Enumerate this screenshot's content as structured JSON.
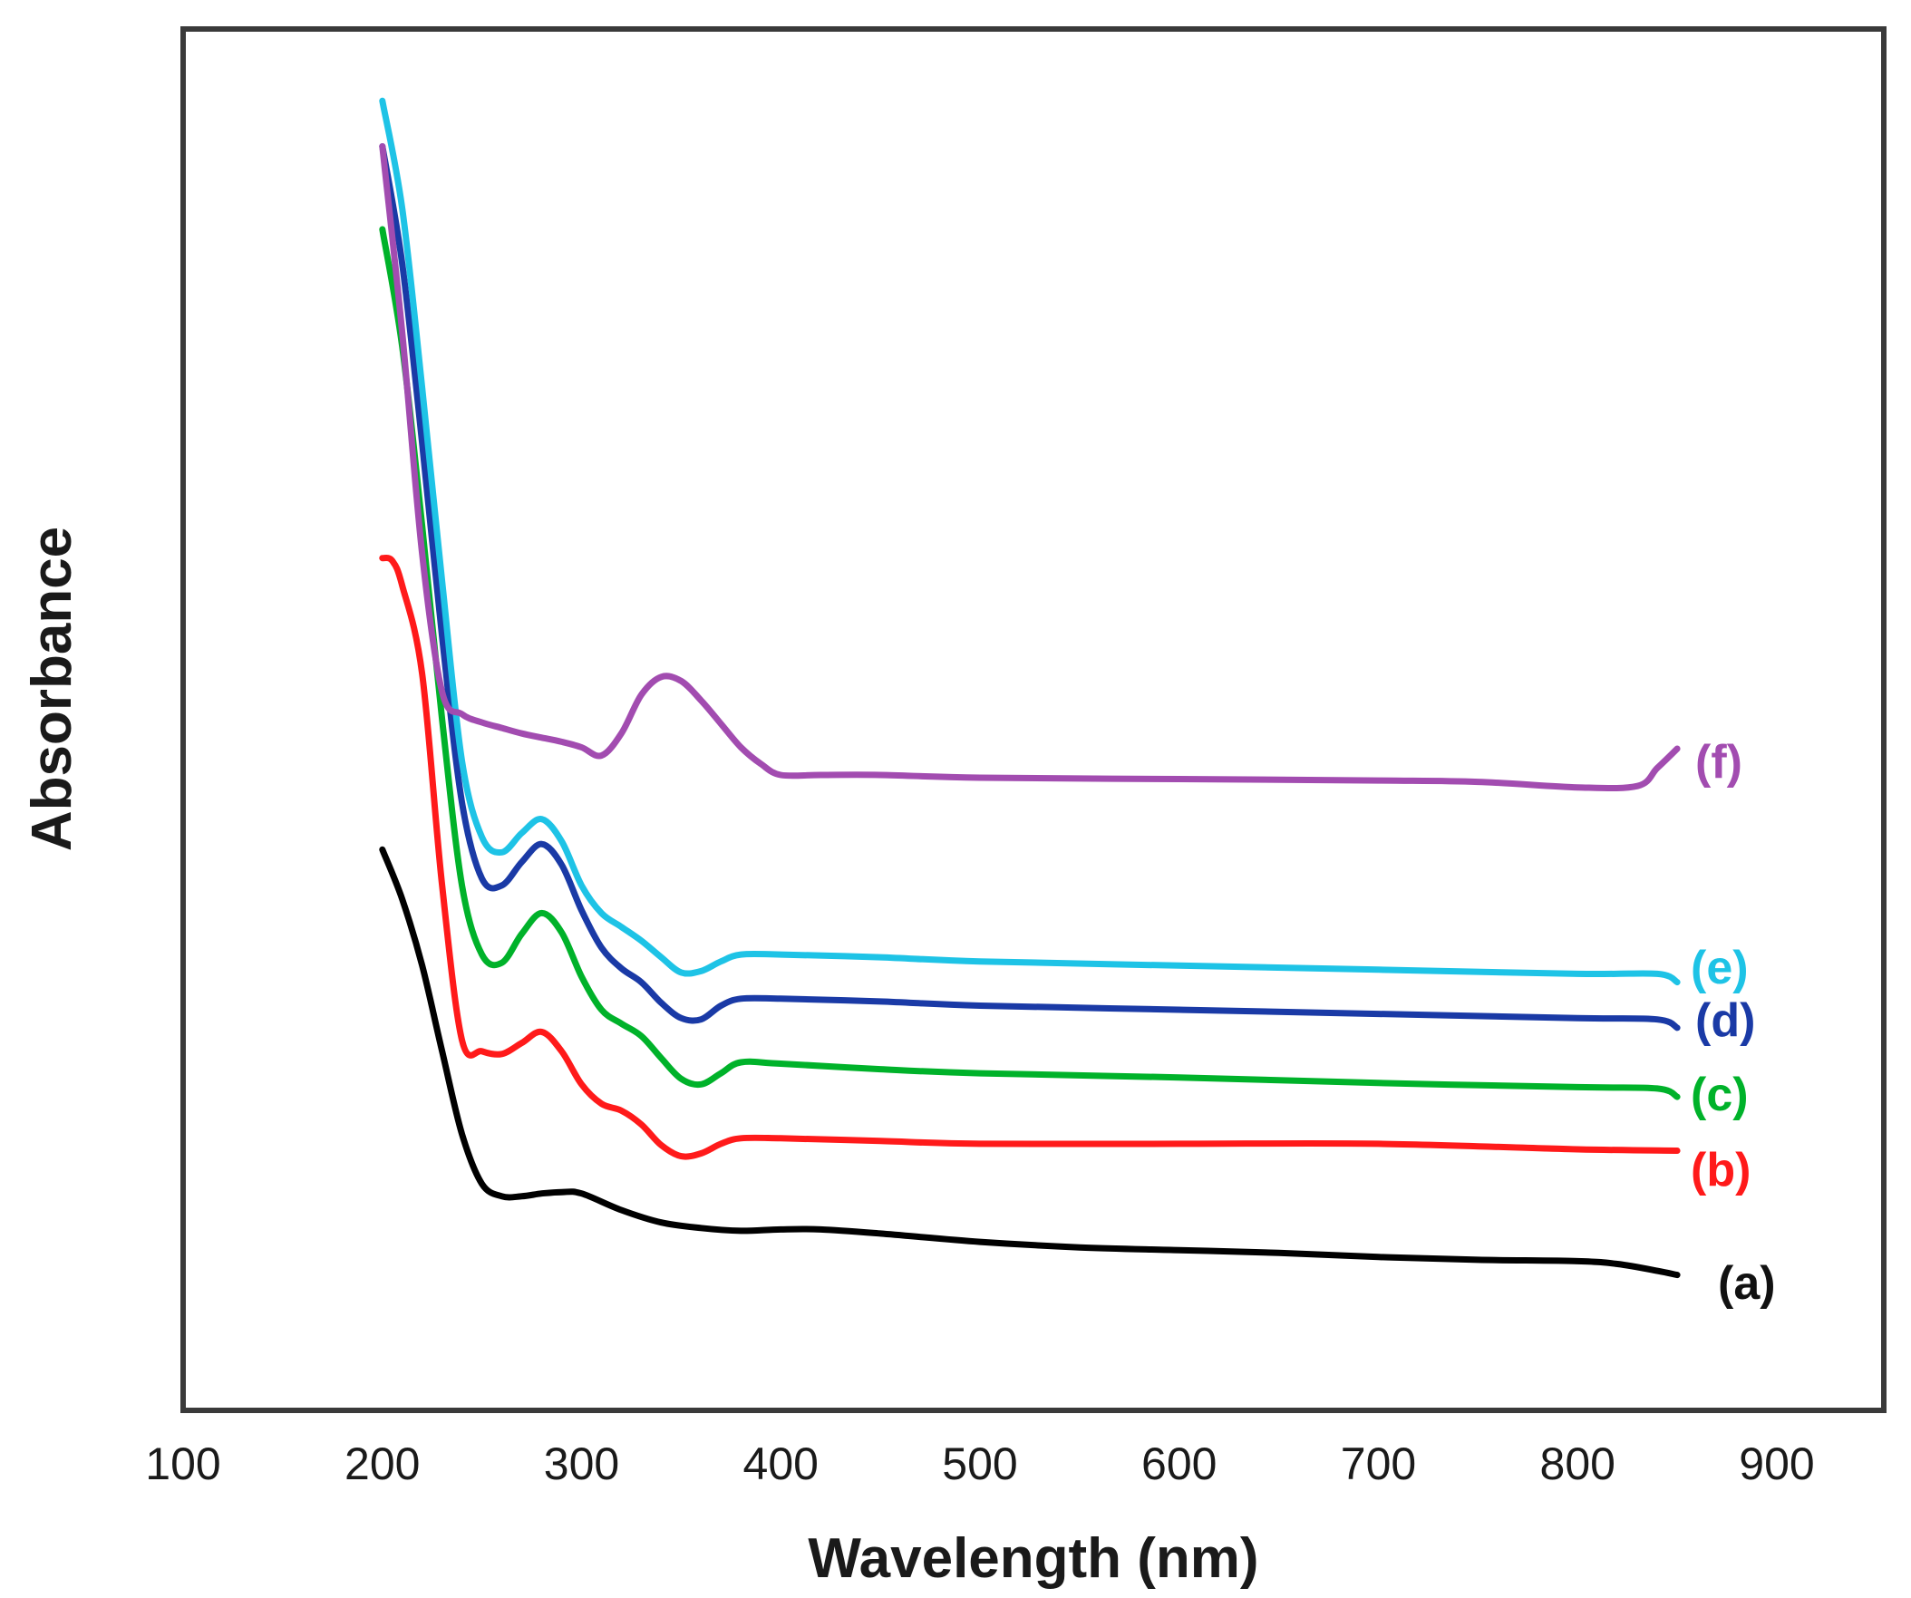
{
  "chart_data": {
    "type": "line",
    "title": "",
    "xlabel": "Wavelength (nm)",
    "ylabel": "Absorbance",
    "xlim": [
      100,
      950
    ],
    "ylim": [
      0,
      1
    ],
    "xticks": [
      100,
      200,
      300,
      400,
      500,
      600,
      700,
      800,
      900
    ],
    "xtick_labels": [
      "100",
      "200",
      "300",
      "400",
      "500",
      "600",
      "700",
      "800",
      "900"
    ],
    "y_ticks_shown": false,
    "grid": false,
    "series": [
      {
        "name": "(a)",
        "label": "(a)",
        "color": "#000000",
        "label_color": "#111111",
        "x": [
          200,
          210,
          220,
          230,
          240,
          250,
          260,
          270,
          280,
          290,
          300,
          320,
          340,
          360,
          380,
          400,
          420,
          450,
          500,
          550,
          600,
          650,
          700,
          750,
          800,
          820,
          840,
          850
        ],
        "y": [
          0.406,
          0.37,
          0.322,
          0.26,
          0.2,
          0.164,
          0.155,
          0.155,
          0.157,
          0.158,
          0.157,
          0.145,
          0.136,
          0.132,
          0.13,
          0.131,
          0.131,
          0.128,
          0.122,
          0.118,
          0.116,
          0.114,
          0.111,
          0.109,
          0.108,
          0.106,
          0.101,
          0.098
        ]
      },
      {
        "name": "(b)",
        "label": "(b)",
        "color": "#ff1a1a",
        "label_color": "#ff1a1a",
        "x": [
          200,
          205,
          210,
          220,
          230,
          240,
          250,
          260,
          270,
          280,
          290,
          300,
          310,
          320,
          330,
          340,
          350,
          360,
          370,
          380,
          400,
          450,
          500,
          600,
          700,
          800,
          850
        ],
        "y": [
          0.617,
          0.615,
          0.597,
          0.533,
          0.38,
          0.268,
          0.26,
          0.258,
          0.266,
          0.274,
          0.26,
          0.236,
          0.222,
          0.217,
          0.207,
          0.192,
          0.184,
          0.186,
          0.193,
          0.197,
          0.197,
          0.195,
          0.193,
          0.193,
          0.193,
          0.189,
          0.188
        ]
      },
      {
        "name": "(c)",
        "label": "(c)",
        "color": "#00b22a",
        "label_color": "#00b22a",
        "x": [
          200,
          210,
          220,
          230,
          240,
          250,
          260,
          270,
          280,
          290,
          300,
          310,
          320,
          330,
          340,
          350,
          360,
          370,
          380,
          400,
          450,
          500,
          600,
          700,
          800,
          840,
          850
        ],
        "y": [
          0.855,
          0.77,
          0.64,
          0.5,
          0.38,
          0.33,
          0.324,
          0.345,
          0.36,
          0.346,
          0.314,
          0.29,
          0.28,
          0.271,
          0.255,
          0.24,
          0.236,
          0.244,
          0.252,
          0.251,
          0.247,
          0.244,
          0.241,
          0.237,
          0.234,
          0.233,
          0.227
        ]
      },
      {
        "name": "(d)",
        "label": "(d)",
        "color": "#1a3aa6",
        "label_color": "#1a3aa6",
        "x": [
          200,
          210,
          220,
          230,
          240,
          250,
          260,
          270,
          280,
          290,
          300,
          310,
          320,
          330,
          340,
          350,
          360,
          370,
          380,
          400,
          450,
          500,
          600,
          700,
          800,
          840,
          850
        ],
        "y": [
          0.915,
          0.83,
          0.7,
          0.56,
          0.44,
          0.385,
          0.38,
          0.397,
          0.41,
          0.395,
          0.362,
          0.335,
          0.32,
          0.31,
          0.295,
          0.284,
          0.283,
          0.293,
          0.298,
          0.298,
          0.296,
          0.293,
          0.29,
          0.287,
          0.284,
          0.283,
          0.277
        ]
      },
      {
        "name": "(e)",
        "label": "(e)",
        "color": "#1ec3e6",
        "label_color": "#1ec3e6",
        "x": [
          200,
          210,
          220,
          230,
          240,
          250,
          260,
          270,
          280,
          290,
          300,
          310,
          320,
          330,
          340,
          350,
          360,
          370,
          380,
          400,
          450,
          500,
          600,
          700,
          800,
          840,
          850
        ],
        "y": [
          0.948,
          0.87,
          0.74,
          0.6,
          0.47,
          0.415,
          0.404,
          0.418,
          0.428,
          0.412,
          0.38,
          0.36,
          0.35,
          0.34,
          0.328,
          0.317,
          0.318,
          0.325,
          0.33,
          0.33,
          0.328,
          0.325,
          0.322,
          0.319,
          0.316,
          0.316,
          0.31
        ]
      },
      {
        "name": "(f)",
        "label": "(f)",
        "color": "#a24cb0",
        "label_color": "#a24cb0",
        "x": [
          200,
          210,
          220,
          230,
          240,
          250,
          260,
          270,
          280,
          290,
          300,
          310,
          320,
          330,
          340,
          350,
          360,
          370,
          380,
          390,
          400,
          420,
          450,
          500,
          600,
          700,
          750,
          800,
          830,
          840,
          850
        ],
        "y": [
          0.915,
          0.78,
          0.62,
          0.52,
          0.504,
          0.498,
          0.494,
          0.49,
          0.487,
          0.484,
          0.48,
          0.474,
          0.49,
          0.518,
          0.531,
          0.528,
          0.514,
          0.497,
          0.48,
          0.468,
          0.46,
          0.46,
          0.46,
          0.458,
          0.457,
          0.456,
          0.455,
          0.451,
          0.452,
          0.465,
          0.479
        ]
      }
    ]
  }
}
